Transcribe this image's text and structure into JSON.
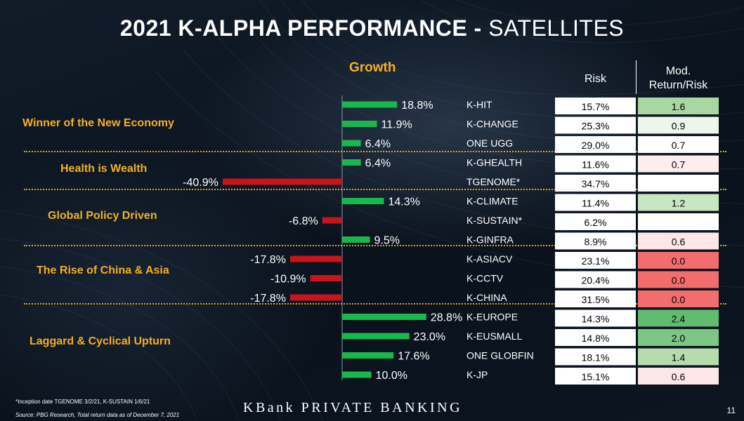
{
  "title": {
    "main": "2021 K-ALPHA PERFORMANCE",
    "dash": " - ",
    "sub": "SATELLITES"
  },
  "columns": {
    "growth": "Growth",
    "risk": "Risk",
    "mod_line1": "Mod.",
    "mod_line2": "Return/Risk"
  },
  "groups": [
    {
      "label": "Winner of the New Economy"
    },
    {
      "label": "Health is Wealth"
    },
    {
      "label": "Global Policy Driven"
    },
    {
      "label": "The Rise of China & Asia"
    },
    {
      "label": "Laggard & Cyclical Upturn"
    }
  ],
  "colors": {
    "positive_bar": "#19b84a",
    "negative_bar": "#c8141c",
    "accent": "#f5b021"
  },
  "chart_data": {
    "type": "bar",
    "orientation": "horizontal",
    "categories": [
      "K-HIT",
      "K-CHANGE",
      "ONE UGG",
      "K-GHEALTH",
      "TGENOME*",
      "K-CLIMATE",
      "K-SUSTAIN*",
      "K-GINFRA",
      "K-ASIACV",
      "K-CCTV",
      "K-CHINA",
      "K-EUROPE",
      "K-EUSMALL",
      "ONE GLOBFIN",
      "K-JP"
    ],
    "values": [
      18.8,
      11.9,
      6.4,
      6.4,
      -40.9,
      14.3,
      -6.8,
      9.5,
      -17.8,
      -10.9,
      -17.8,
      28.8,
      23.0,
      17.6,
      10.0
    ],
    "value_labels": [
      "18.8%",
      "11.9%",
      "6.4%",
      "6.4%",
      "-40.9%",
      "14.3%",
      "-6.8%",
      "9.5%",
      "-17.8%",
      "-10.9%",
      "-17.8%",
      "28.8%",
      "23.0%",
      "17.6%",
      "10.0%"
    ],
    "group_index": [
      0,
      0,
      0,
      1,
      1,
      2,
      2,
      2,
      3,
      3,
      3,
      4,
      4,
      4,
      4
    ],
    "risk": [
      "15.7%",
      "25.3%",
      "29.0%",
      "11.6%",
      "34.7%",
      "11.4%",
      "6.2%",
      "8.9%",
      "23.1%",
      "20.4%",
      "31.5%",
      "14.3%",
      "14.8%",
      "18.1%",
      "15.1%"
    ],
    "mod_return_risk": [
      "1.6",
      "0.9",
      "0.7",
      "0.7",
      "",
      "1.2",
      "",
      "0.6",
      "0.0",
      "0.0",
      "0.0",
      "2.4",
      "2.0",
      "1.4",
      "0.6"
    ],
    "mod_return_risk_colors": [
      "#a9d7a3",
      "#eef6ec",
      "#ffffff",
      "#fdeeee",
      "#ffffff",
      "#c9e6c3",
      "#ffffff",
      "#fce7e6",
      "#f26d6d",
      "#f26d6d",
      "#f26d6d",
      "#63bb72",
      "#7dc685",
      "#b6dcae",
      "#fce7e6"
    ],
    "xlim": [
      -45,
      32
    ]
  },
  "footnote": {
    "inception": "*Inception date TGENOME 3/2/21, K-SUSTAIN 1/6/21",
    "source": "Source: PBG Research, Total return data as of December 7, 2021"
  },
  "brand": "KBank PRIVATE BANKING",
  "page_number": "11"
}
